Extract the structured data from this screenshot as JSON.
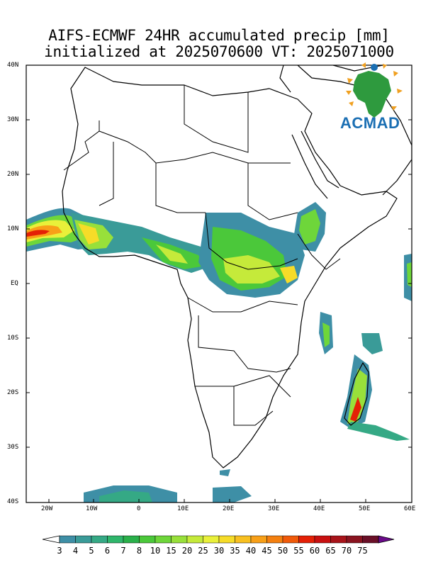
{
  "title": {
    "line1": "AIFS-ECMWF 24HR accumulated precip [mm]",
    "line2": "initialized at 2025070600 VT: 2025071000"
  },
  "logo": {
    "text": "ACMAD",
    "icon": "africa-map-logo-icon"
  },
  "lat_labels": [
    "40N",
    "30N",
    "20N",
    "10N",
    "EQ",
    "10S",
    "20S",
    "30S",
    "40S"
  ],
  "lon_labels": [
    "20W",
    "10W",
    "0",
    "10E",
    "20E",
    "30E",
    "40E",
    "50E",
    "60E"
  ],
  "colorbar": {
    "labels": [
      "3",
      "4",
      "5",
      "6",
      "7",
      "8",
      "10",
      "15",
      "20",
      "25",
      "30",
      "35",
      "40",
      "45",
      "50",
      "55",
      "60",
      "65",
      "70",
      "75"
    ],
    "colors": [
      "#3e8fa6",
      "#3a9b98",
      "#35a985",
      "#2fb66b",
      "#2ab04a",
      "#4bc83a",
      "#6ed63a",
      "#98e03a",
      "#c5ea3a",
      "#e9f03a",
      "#f6dc28",
      "#f8c020",
      "#f8a018",
      "#f48010",
      "#f05a0a",
      "#e42006",
      "#c81010",
      "#a8141a",
      "#8a1420",
      "#6a1028"
    ],
    "low_arrow_color": "#ffffff",
    "high_arrow_color": "#6a0a8a"
  }
}
